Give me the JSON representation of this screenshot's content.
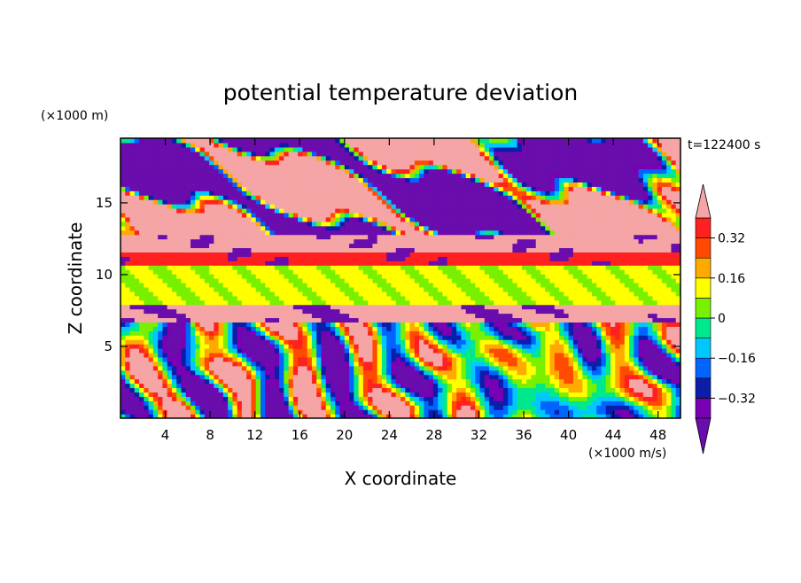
{
  "chart_data": {
    "type": "heatmap",
    "title": "potential temperature deviation",
    "xlabel": "X coordinate",
    "ylabel": "Z coordinate",
    "x_unit": "(×1000 m/s)",
    "y_unit": "(×1000 m)",
    "time_label": "t=122400 s",
    "xlim": [
      0,
      50
    ],
    "ylim": [
      0,
      19.5
    ],
    "x_ticks": [
      4,
      8,
      12,
      16,
      20,
      24,
      28,
      32,
      36,
      40,
      44,
      48
    ],
    "y_ticks": [
      5,
      10,
      15
    ],
    "colorbar": {
      "levels": [
        -0.4,
        -0.32,
        -0.24,
        -0.16,
        -0.08,
        0,
        0.08,
        0.16,
        0.24,
        0.32,
        0.4
      ],
      "labels": [
        "0.32",
        "0.16",
        "0",
        "−0.16",
        "−0.32"
      ],
      "label_values": [
        0.32,
        0.16,
        0,
        -0.16,
        -0.32
      ],
      "colors": [
        "#6a0dad",
        "#7a00b4",
        "#0a1eaa",
        "#0064ff",
        "#00c8ff",
        "#00e88c",
        "#78f000",
        "#ffff00",
        "#ffaa00",
        "#ff4a00",
        "#ff2020",
        "#f5a5a5"
      ],
      "under_color": "#6a0dad",
      "over_color": "#f5a5a5"
    },
    "layers": [
      {
        "z_range": [
          0,
          6.6
        ],
        "description": "turbulent mixed field",
        "pattern": "turbulent"
      },
      {
        "z_range": [
          6.6,
          8.0
        ],
        "description": "pink/purple band",
        "pattern": "band_low"
      },
      {
        "z_range": [
          8.0,
          10.8
        ],
        "description": "green band near zero",
        "pattern": "band_zero"
      },
      {
        "z_range": [
          10.8,
          12.8
        ],
        "description": "red/pink band with purple patches",
        "pattern": "band_high"
      },
      {
        "z_range": [
          12.8,
          19.5
        ],
        "description": "pink and purple blobs",
        "pattern": "upper"
      }
    ]
  }
}
